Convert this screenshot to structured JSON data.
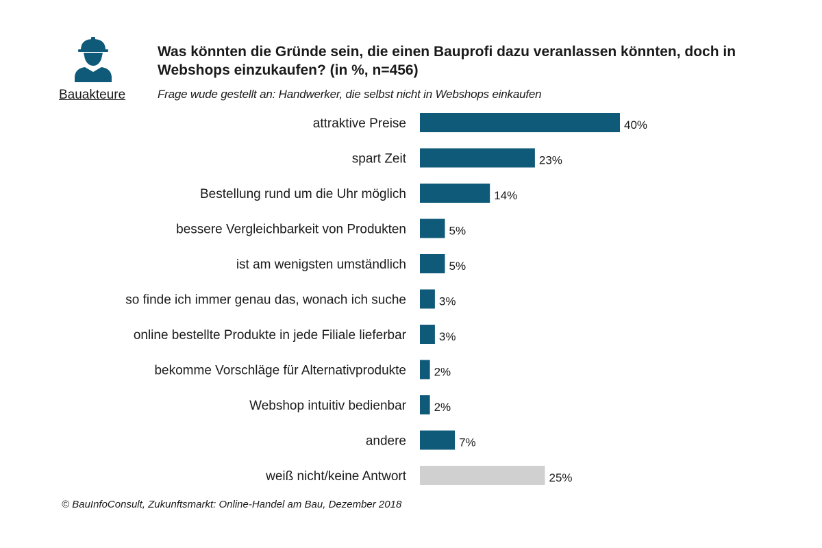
{
  "brand": {
    "icon": "construction-worker-icon",
    "label": "Bauakteure",
    "icon_color": "#0e5a78"
  },
  "footer": {
    "source": "© BauInfoConsult, Zukunftsmarkt: Online-Handel am Bau, Dezember 2018"
  },
  "colors": {
    "primary_bar": "#0e5a78",
    "neutral_bar": "#d0d0d0"
  },
  "chart_data": {
    "type": "bar",
    "orientation": "horizontal",
    "title": "Was könnten die Gründe sein, die einen Bauprofi dazu veranlassen könnten, doch in Webshops einzukaufen? (in %, n=456)",
    "subtitle": "Frage wude gestellt an: Handwerker, die selbst nicht in Webshops einkaufen",
    "categories": [
      "attraktive Preise",
      "spart Zeit",
      "Bestellung rund um die Uhr möglich",
      "bessere Vergleichbarkeit von Produkten",
      "ist am wenigsten umständlich",
      "so finde ich immer genau das, wonach ich suche",
      "online bestellte Produkte in jede Filiale lieferbar",
      "bekomme Vorschläge für Alternativprodukte",
      "Webshop intuitiv bedienbar",
      "andere",
      "weiß nicht/keine Antwort"
    ],
    "values": [
      40,
      23,
      14,
      5,
      5,
      3,
      3,
      2,
      2,
      7,
      25
    ],
    "value_labels": [
      "40%",
      "23%",
      "14%",
      "5%",
      "5%",
      "3%",
      "3%",
      "2%",
      "2%",
      "7%",
      "25%"
    ],
    "highlight": [
      "primary",
      "primary",
      "primary",
      "primary",
      "primary",
      "primary",
      "primary",
      "primary",
      "primary",
      "primary",
      "neutral"
    ],
    "unit": "%",
    "grid": false,
    "legend": "none"
  }
}
